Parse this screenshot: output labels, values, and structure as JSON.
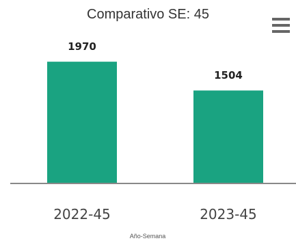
{
  "chart_data": {
    "type": "bar",
    "title": "Comparativo SE: 45",
    "categories": [
      "2022-45",
      "2023-45"
    ],
    "values": [
      1970,
      1504
    ],
    "xlabel": "Año-Semana",
    "ylabel": "",
    "ylim": [
      0,
      2470
    ],
    "grid": false,
    "legend": "none",
    "colors": {
      "bar": "#1aa381",
      "axis": "#888888",
      "menu": "#666666"
    }
  },
  "toolbar": {
    "menu_icon": "hamburger-menu-icon"
  }
}
